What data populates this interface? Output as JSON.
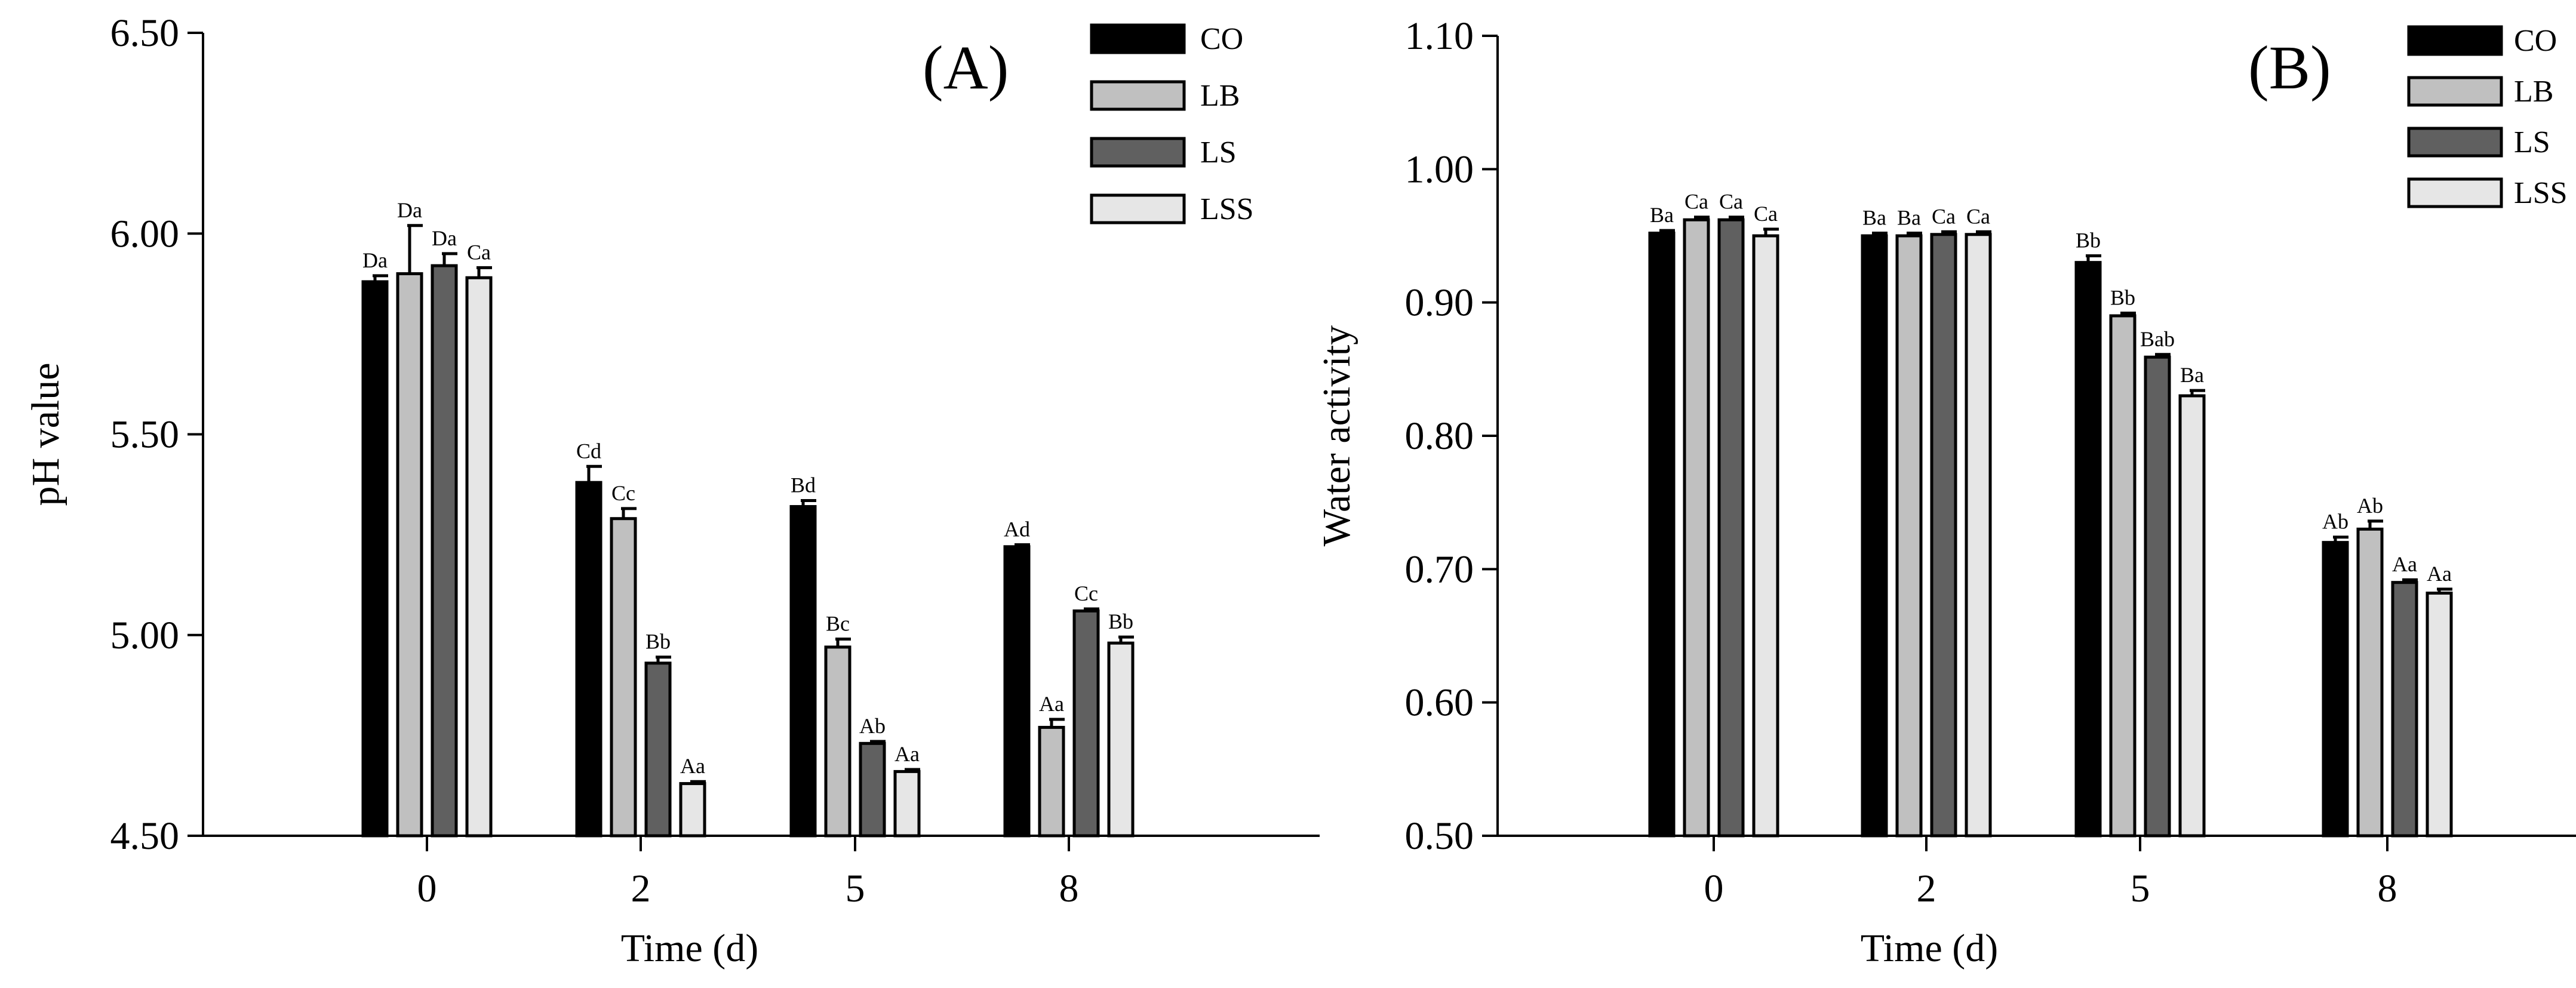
{
  "figure": {
    "legend_position": "top-right",
    "series_styles": [
      {
        "name": "CO",
        "color": "#000000"
      },
      {
        "name": "LB",
        "color": "#c0c0c0"
      },
      {
        "name": "LS",
        "color": "#606060"
      },
      {
        "name": "LSS",
        "color": "#e6e6e6"
      }
    ]
  },
  "chart_data": [
    {
      "type": "bar",
      "panel_label": "(A)",
      "xlabel": "Time (d)",
      "ylabel": "pH value",
      "categories": [
        "0",
        "2",
        "5",
        "8"
      ],
      "ylim": [
        4.5,
        6.5
      ],
      "yticks": [
        "4.50",
        "5.00",
        "5.50",
        "6.00",
        "6.50"
      ],
      "legend": [
        "CO",
        "LB",
        "LS",
        "LSS"
      ],
      "series": [
        {
          "name": "CO",
          "values": [
            5.88,
            5.38,
            5.32,
            5.22
          ],
          "errors": [
            0.015,
            0.04,
            0.015,
            0.005
          ],
          "labels": [
            "Da",
            "Cd",
            "Bd",
            "Ad"
          ]
        },
        {
          "name": "LB",
          "values": [
            5.9,
            5.29,
            4.97,
            4.77
          ],
          "errors": [
            0.12,
            0.025,
            0.02,
            0.02
          ],
          "labels": [
            "Da",
            "Cc",
            "Bc",
            "Aa"
          ]
        },
        {
          "name": "LS",
          "values": [
            5.92,
            4.93,
            4.73,
            5.06
          ],
          "errors": [
            0.03,
            0.015,
            0.005,
            0.005
          ],
          "labels": [
            "Da",
            "Bb",
            "Ab",
            "Cc"
          ]
        },
        {
          "name": "LSS",
          "values": [
            5.89,
            4.63,
            4.66,
            4.98
          ],
          "errors": [
            0.025,
            0.005,
            0.005,
            0.015
          ],
          "labels": [
            "Ca",
            "Aa",
            "Aa",
            "Bb"
          ]
        }
      ]
    },
    {
      "type": "bar",
      "panel_label": "(B)",
      "xlabel": "Time (d)",
      "ylabel": "Water activity",
      "categories": [
        "0",
        "2",
        "5",
        "8"
      ],
      "ylim": [
        0.5,
        1.1
      ],
      "yticks": [
        "0.50",
        "0.60",
        "0.70",
        "0.80",
        "0.90",
        "1.00",
        "1.10"
      ],
      "legend": [
        "CO",
        "LB",
        "LS",
        "LSS"
      ],
      "series": [
        {
          "name": "CO",
          "values": [
            0.952,
            0.95,
            0.93,
            0.72
          ],
          "errors": [
            0.002,
            0.002,
            0.005,
            0.004
          ],
          "labels": [
            "Ba",
            "Ba",
            "Bb",
            "Ab"
          ]
        },
        {
          "name": "LB",
          "values": [
            0.962,
            0.95,
            0.89,
            0.73
          ],
          "errors": [
            0.002,
            0.002,
            0.002,
            0.006
          ],
          "labels": [
            "Ca",
            "Ba",
            "Bb",
            "Ab"
          ]
        },
        {
          "name": "LS",
          "values": [
            0.962,
            0.951,
            0.859,
            0.69
          ],
          "errors": [
            0.002,
            0.002,
            0.002,
            0.002
          ],
          "labels": [
            "Ca",
            "Ca",
            "Bab",
            "Aa"
          ]
        },
        {
          "name": "LSS",
          "values": [
            0.95,
            0.951,
            0.83,
            0.682
          ],
          "errors": [
            0.005,
            0.002,
            0.004,
            0.003
          ],
          "labels": [
            "Ca",
            "Ca",
            "Ba",
            "Aa"
          ]
        }
      ]
    }
  ]
}
